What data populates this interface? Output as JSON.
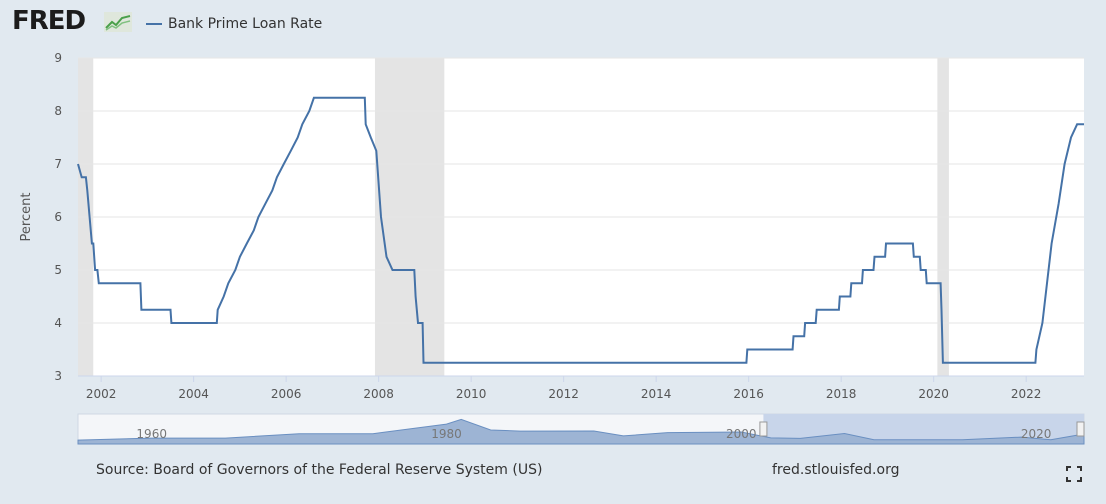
{
  "header": {
    "logo_text": "FRED",
    "logo_icon": "chart-trend-icon"
  },
  "footer": {
    "source": "Source: Board of Governors of the Federal Reserve System (US)",
    "url": "fred.stlouisfed.org",
    "fullscreen_icon": "fullscreen-icon"
  },
  "colors": {
    "line": "#4572a7",
    "recession": "#e4e4e4",
    "background": "#e1e9f0",
    "plot": "#ffffff",
    "navigator_fill": "#9db4d4",
    "navigator_selected": "#c8d5ea"
  },
  "chart_data": {
    "type": "line",
    "title": "",
    "xlabel": "",
    "ylabel": "Percent",
    "xlim": [
      2001.5,
      2023.25
    ],
    "ylim": [
      3,
      9
    ],
    "yticks": [
      "3",
      "4",
      "5",
      "6",
      "7",
      "8",
      "9"
    ],
    "xticks": [
      "2002",
      "2004",
      "2006",
      "2008",
      "2010",
      "2012",
      "2014",
      "2016",
      "2018",
      "2020",
      "2022"
    ],
    "grid": true,
    "legend_position": "top-left",
    "series": [
      {
        "name": "Bank Prime Loan Rate",
        "points": [
          [
            2001.5,
            7.0
          ],
          [
            2001.58,
            6.75
          ],
          [
            2001.67,
            6.75
          ],
          [
            2001.7,
            6.5
          ],
          [
            2001.75,
            6.0
          ],
          [
            2001.8,
            5.5
          ],
          [
            2001.83,
            5.5
          ],
          [
            2001.87,
            5.0
          ],
          [
            2001.92,
            5.0
          ],
          [
            2001.95,
            4.75
          ],
          [
            2002.85,
            4.75
          ],
          [
            2002.87,
            4.25
          ],
          [
            2003.5,
            4.25
          ],
          [
            2003.52,
            4.0
          ],
          [
            2004.5,
            4.0
          ],
          [
            2004.52,
            4.25
          ],
          [
            2004.65,
            4.5
          ],
          [
            2004.75,
            4.75
          ],
          [
            2004.9,
            5.0
          ],
          [
            2005.0,
            5.25
          ],
          [
            2005.15,
            5.5
          ],
          [
            2005.3,
            5.75
          ],
          [
            2005.4,
            6.0
          ],
          [
            2005.55,
            6.25
          ],
          [
            2005.7,
            6.5
          ],
          [
            2005.8,
            6.75
          ],
          [
            2005.95,
            7.0
          ],
          [
            2006.1,
            7.25
          ],
          [
            2006.25,
            7.5
          ],
          [
            2006.35,
            7.75
          ],
          [
            2006.5,
            8.0
          ],
          [
            2006.6,
            8.25
          ],
          [
            2007.7,
            8.25
          ],
          [
            2007.72,
            7.75
          ],
          [
            2007.83,
            7.5
          ],
          [
            2007.95,
            7.25
          ],
          [
            2008.05,
            6.0
          ],
          [
            2008.17,
            5.25
          ],
          [
            2008.3,
            5.0
          ],
          [
            2008.77,
            5.0
          ],
          [
            2008.8,
            4.5
          ],
          [
            2008.85,
            4.0
          ],
          [
            2008.95,
            4.0
          ],
          [
            2008.97,
            3.25
          ],
          [
            2015.95,
            3.25
          ],
          [
            2015.97,
            3.5
          ],
          [
            2016.95,
            3.5
          ],
          [
            2016.97,
            3.75
          ],
          [
            2017.2,
            3.75
          ],
          [
            2017.22,
            4.0
          ],
          [
            2017.45,
            4.0
          ],
          [
            2017.47,
            4.25
          ],
          [
            2017.95,
            4.25
          ],
          [
            2017.97,
            4.5
          ],
          [
            2018.2,
            4.5
          ],
          [
            2018.22,
            4.75
          ],
          [
            2018.45,
            4.75
          ],
          [
            2018.47,
            5.0
          ],
          [
            2018.7,
            5.0
          ],
          [
            2018.72,
            5.25
          ],
          [
            2018.95,
            5.25
          ],
          [
            2018.97,
            5.5
          ],
          [
            2019.55,
            5.5
          ],
          [
            2019.57,
            5.25
          ],
          [
            2019.7,
            5.25
          ],
          [
            2019.72,
            5.0
          ],
          [
            2019.83,
            5.0
          ],
          [
            2019.85,
            4.75
          ],
          [
            2020.15,
            4.75
          ],
          [
            2020.17,
            4.25
          ],
          [
            2020.2,
            3.25
          ],
          [
            2022.2,
            3.25
          ],
          [
            2022.22,
            3.5
          ],
          [
            2022.35,
            4.0
          ],
          [
            2022.45,
            4.75
          ],
          [
            2022.55,
            5.5
          ],
          [
            2022.7,
            6.25
          ],
          [
            2022.83,
            7.0
          ],
          [
            2022.97,
            7.5
          ],
          [
            2023.1,
            7.75
          ],
          [
            2023.25,
            7.75
          ]
        ]
      }
    ],
    "recessions": [
      [
        2001.5,
        2001.83
      ],
      [
        2007.92,
        2009.42
      ],
      [
        2020.08,
        2020.33
      ]
    ],
    "navigator": {
      "labels": [
        "1960",
        "1980",
        "2000",
        "2020"
      ],
      "range": [
        1955,
        2023.25
      ],
      "selected": [
        2001.5,
        2023.25
      ]
    }
  }
}
